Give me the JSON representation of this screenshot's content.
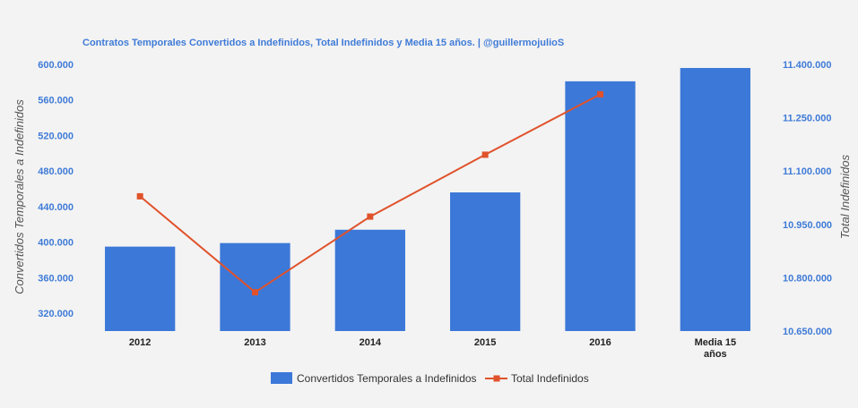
{
  "chart_data": {
    "type": "bar",
    "title": "Contratos Temporales Convertidos a Indefinidos, Total Indefinidos y Media 15 años. | @guillermojulioS",
    "categories": [
      "2012",
      "2013",
      "2014",
      "2015",
      "2016",
      "Media 15 años"
    ],
    "category_lines": [
      [
        "2012"
      ],
      [
        "2013"
      ],
      [
        "2014"
      ],
      [
        "2015"
      ],
      [
        "2016"
      ],
      [
        "Media 15",
        "años"
      ]
    ],
    "series": [
      {
        "name": "Convertidos Temporales a Indefinidos",
        "type": "bar",
        "axis": "left",
        "color": "#3c78d8",
        "values": [
          395000,
          399000,
          414000,
          456000,
          581000,
          596000
        ]
      },
      {
        "name": "Total Indefinidos",
        "type": "line",
        "axis": "right",
        "color": "#e0522b",
        "values": [
          11029000,
          10759000,
          10972000,
          11146000,
          11316000,
          null
        ]
      }
    ],
    "ylabel": "Convertidos Temporales a Indefinidos",
    "y2label": "Total Indefinidos",
    "ylim": [
      300000,
      600000
    ],
    "y2lim": [
      10650000,
      11400000
    ],
    "yticks": [
      320000,
      360000,
      400000,
      440000,
      480000,
      520000,
      560000,
      600000
    ],
    "yticks_labels": [
      "320.000",
      "360.000",
      "400.000",
      "440.000",
      "480.000",
      "520.000",
      "560.000",
      "600.000"
    ],
    "y2ticks": [
      10650000,
      10800000,
      10950000,
      11100000,
      11250000,
      11400000
    ],
    "y2ticks_labels": [
      "10.650.000",
      "10.800.000",
      "10.950.000",
      "11.100.000",
      "11.250.000",
      "11.400.000"
    ],
    "legend": "bottom",
    "grid": false
  }
}
